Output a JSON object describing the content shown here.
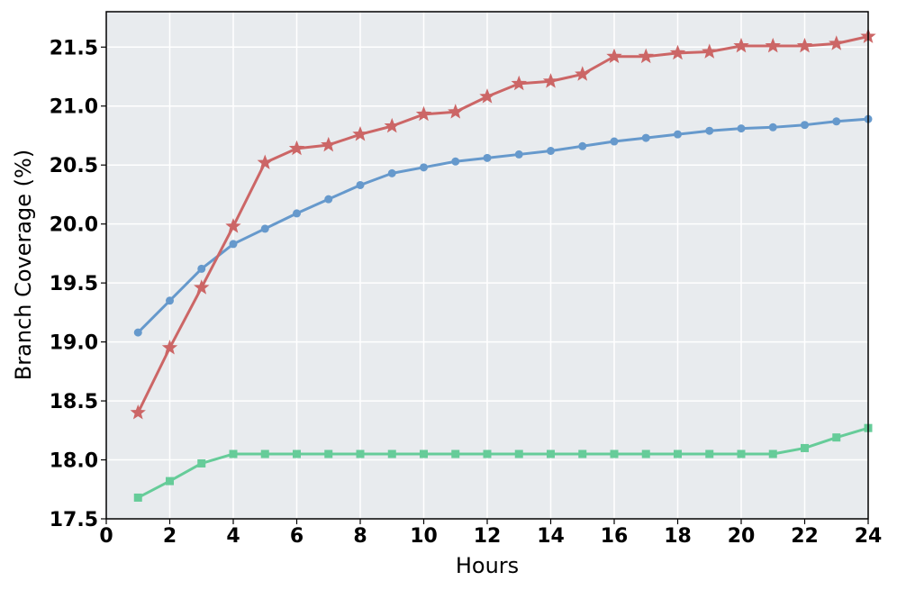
{
  "chart_data": {
    "type": "line",
    "xlabel": "Hours",
    "ylabel": "Branch Coverage (%)",
    "xlim": [
      0,
      24
    ],
    "ylim": [
      17.5,
      21.8
    ],
    "xticks": [
      0,
      2,
      4,
      6,
      8,
      10,
      12,
      14,
      16,
      18,
      20,
      22,
      24
    ],
    "yticks": [
      17.5,
      18.0,
      18.5,
      19.0,
      19.5,
      20.0,
      20.5,
      21.0,
      21.5
    ],
    "xtick_labels": [
      "0",
      "2",
      "4",
      "6",
      "8",
      "10",
      "12",
      "14",
      "16",
      "18",
      "20",
      "22",
      "24"
    ],
    "ytick_labels": [
      "17.5",
      "18.0",
      "18.5",
      "19.0",
      "19.5",
      "20.0",
      "20.5",
      "21.0",
      "21.5"
    ],
    "grid": true,
    "background": "#e8ebee",
    "x": [
      1,
      2,
      3,
      4,
      5,
      6,
      7,
      8,
      9,
      10,
      11,
      12,
      13,
      14,
      15,
      16,
      17,
      18,
      19,
      20,
      21,
      22,
      23,
      24
    ],
    "series": [
      {
        "color": "#6699cc",
        "marker": "circle",
        "values": [
          19.08,
          19.35,
          19.62,
          19.83,
          19.96,
          20.09,
          20.21,
          20.33,
          20.43,
          20.48,
          20.53,
          20.56,
          20.59,
          20.62,
          20.66,
          20.7,
          20.73,
          20.76,
          20.79,
          20.81,
          20.82,
          20.84,
          20.87,
          20.89
        ]
      },
      {
        "color": "#cc6666",
        "marker": "star",
        "values": [
          18.4,
          18.95,
          19.46,
          19.98,
          20.52,
          20.64,
          20.67,
          20.76,
          20.83,
          20.93,
          20.95,
          21.08,
          21.19,
          21.21,
          21.27,
          21.42,
          21.42,
          21.45,
          21.46,
          21.51,
          21.51,
          21.51,
          21.53,
          21.59
        ]
      },
      {
        "color": "#66cc99",
        "marker": "square",
        "values": [
          17.68,
          17.82,
          17.97,
          18.05,
          18.05,
          18.05,
          18.05,
          18.05,
          18.05,
          18.05,
          18.05,
          18.05,
          18.05,
          18.05,
          18.05,
          18.05,
          18.05,
          18.05,
          18.05,
          18.05,
          18.05,
          18.1,
          18.19,
          18.27
        ]
      }
    ]
  }
}
